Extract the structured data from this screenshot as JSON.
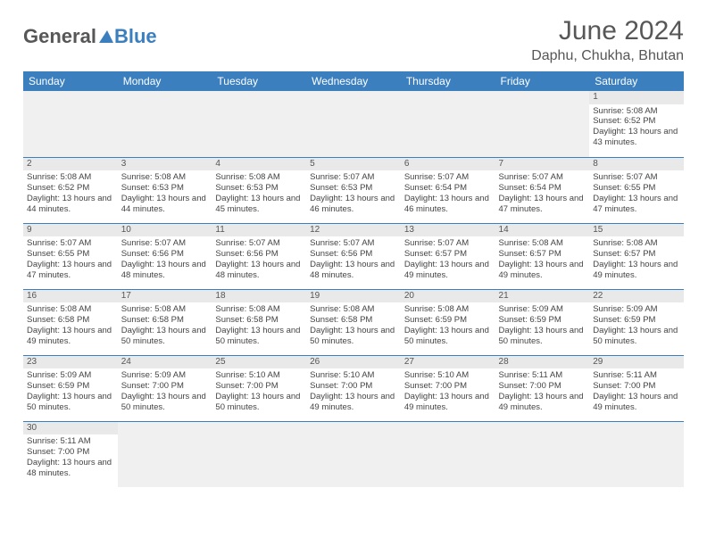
{
  "brand": {
    "part1": "General",
    "part2": "Blue",
    "color1": "#575757",
    "color2": "#3b7fbf"
  },
  "title": "June 2024",
  "location": "Daphu, Chukha, Bhutan",
  "colors": {
    "header_bg": "#3b7fbf",
    "header_fg": "#ffffff",
    "daynum_bg": "#e9e9e9",
    "text": "#444444",
    "rule": "#3b7fbf",
    "empty_bg": "#f0f0f0"
  },
  "day_labels": [
    "Sunday",
    "Monday",
    "Tuesday",
    "Wednesday",
    "Thursday",
    "Friday",
    "Saturday"
  ],
  "first_weekday": 6,
  "days": [
    {
      "n": 1,
      "sunrise": "5:08 AM",
      "sunset": "6:52 PM",
      "daylight": "13 hours and 43 minutes."
    },
    {
      "n": 2,
      "sunrise": "5:08 AM",
      "sunset": "6:52 PM",
      "daylight": "13 hours and 44 minutes."
    },
    {
      "n": 3,
      "sunrise": "5:08 AM",
      "sunset": "6:53 PM",
      "daylight": "13 hours and 44 minutes."
    },
    {
      "n": 4,
      "sunrise": "5:08 AM",
      "sunset": "6:53 PM",
      "daylight": "13 hours and 45 minutes."
    },
    {
      "n": 5,
      "sunrise": "5:07 AM",
      "sunset": "6:53 PM",
      "daylight": "13 hours and 46 minutes."
    },
    {
      "n": 6,
      "sunrise": "5:07 AM",
      "sunset": "6:54 PM",
      "daylight": "13 hours and 46 minutes."
    },
    {
      "n": 7,
      "sunrise": "5:07 AM",
      "sunset": "6:54 PM",
      "daylight": "13 hours and 47 minutes."
    },
    {
      "n": 8,
      "sunrise": "5:07 AM",
      "sunset": "6:55 PM",
      "daylight": "13 hours and 47 minutes."
    },
    {
      "n": 9,
      "sunrise": "5:07 AM",
      "sunset": "6:55 PM",
      "daylight": "13 hours and 47 minutes."
    },
    {
      "n": 10,
      "sunrise": "5:07 AM",
      "sunset": "6:56 PM",
      "daylight": "13 hours and 48 minutes."
    },
    {
      "n": 11,
      "sunrise": "5:07 AM",
      "sunset": "6:56 PM",
      "daylight": "13 hours and 48 minutes."
    },
    {
      "n": 12,
      "sunrise": "5:07 AM",
      "sunset": "6:56 PM",
      "daylight": "13 hours and 48 minutes."
    },
    {
      "n": 13,
      "sunrise": "5:07 AM",
      "sunset": "6:57 PM",
      "daylight": "13 hours and 49 minutes."
    },
    {
      "n": 14,
      "sunrise": "5:08 AM",
      "sunset": "6:57 PM",
      "daylight": "13 hours and 49 minutes."
    },
    {
      "n": 15,
      "sunrise": "5:08 AM",
      "sunset": "6:57 PM",
      "daylight": "13 hours and 49 minutes."
    },
    {
      "n": 16,
      "sunrise": "5:08 AM",
      "sunset": "6:58 PM",
      "daylight": "13 hours and 49 minutes."
    },
    {
      "n": 17,
      "sunrise": "5:08 AM",
      "sunset": "6:58 PM",
      "daylight": "13 hours and 50 minutes."
    },
    {
      "n": 18,
      "sunrise": "5:08 AM",
      "sunset": "6:58 PM",
      "daylight": "13 hours and 50 minutes."
    },
    {
      "n": 19,
      "sunrise": "5:08 AM",
      "sunset": "6:58 PM",
      "daylight": "13 hours and 50 minutes."
    },
    {
      "n": 20,
      "sunrise": "5:08 AM",
      "sunset": "6:59 PM",
      "daylight": "13 hours and 50 minutes."
    },
    {
      "n": 21,
      "sunrise": "5:09 AM",
      "sunset": "6:59 PM",
      "daylight": "13 hours and 50 minutes."
    },
    {
      "n": 22,
      "sunrise": "5:09 AM",
      "sunset": "6:59 PM",
      "daylight": "13 hours and 50 minutes."
    },
    {
      "n": 23,
      "sunrise": "5:09 AM",
      "sunset": "6:59 PM",
      "daylight": "13 hours and 50 minutes."
    },
    {
      "n": 24,
      "sunrise": "5:09 AM",
      "sunset": "7:00 PM",
      "daylight": "13 hours and 50 minutes."
    },
    {
      "n": 25,
      "sunrise": "5:10 AM",
      "sunset": "7:00 PM",
      "daylight": "13 hours and 50 minutes."
    },
    {
      "n": 26,
      "sunrise": "5:10 AM",
      "sunset": "7:00 PM",
      "daylight": "13 hours and 49 minutes."
    },
    {
      "n": 27,
      "sunrise": "5:10 AM",
      "sunset": "7:00 PM",
      "daylight": "13 hours and 49 minutes."
    },
    {
      "n": 28,
      "sunrise": "5:11 AM",
      "sunset": "7:00 PM",
      "daylight": "13 hours and 49 minutes."
    },
    {
      "n": 29,
      "sunrise": "5:11 AM",
      "sunset": "7:00 PM",
      "daylight": "13 hours and 49 minutes."
    },
    {
      "n": 30,
      "sunrise": "5:11 AM",
      "sunset": "7:00 PM",
      "daylight": "13 hours and 48 minutes."
    }
  ],
  "labels": {
    "sunrise": "Sunrise:",
    "sunset": "Sunset:",
    "daylight": "Daylight:"
  }
}
